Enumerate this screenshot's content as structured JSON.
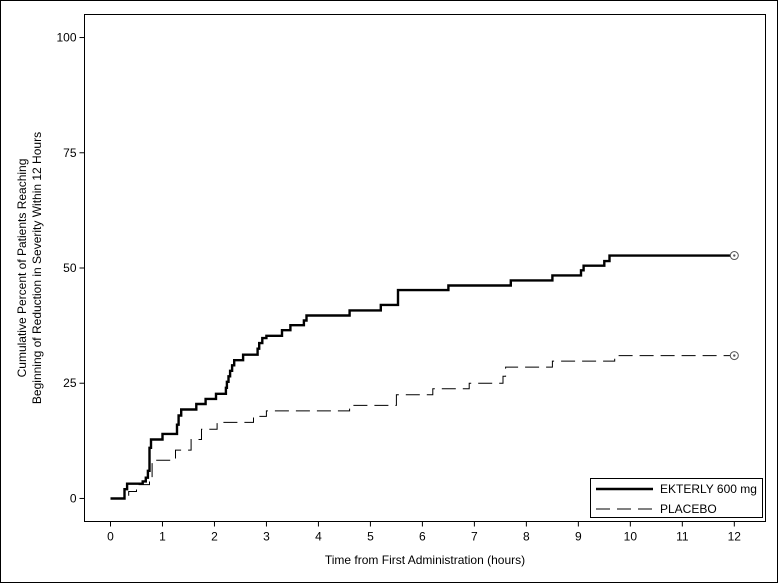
{
  "chart_data": {
    "type": "line",
    "title": "",
    "xlabel": "Time from First Administration (hours)",
    "ylabel_lines": [
      "Cumulative Percent of Patients Reaching",
      "Beginning of Reduction in Severity Within 12 Hours"
    ],
    "xlim": [
      -0.5,
      12.6
    ],
    "ylim": [
      -5,
      105
    ],
    "x_ticks": [
      0,
      1,
      2,
      3,
      4,
      5,
      6,
      7,
      8,
      9,
      10,
      11,
      12
    ],
    "y_ticks": [
      0,
      25,
      50,
      75,
      100
    ],
    "grid": false,
    "legend_position": "bottom-right",
    "censor_marker": "circle",
    "series": [
      {
        "name": "EKTERLY 600 mg",
        "style": "solid-thick",
        "color": "#000000",
        "points": [
          [
            0.0,
            0.0
          ],
          [
            0.27,
            2.0
          ],
          [
            0.32,
            3.2
          ],
          [
            0.62,
            3.7
          ],
          [
            0.68,
            4.5
          ],
          [
            0.72,
            6.0
          ],
          [
            0.75,
            11.0
          ],
          [
            0.78,
            12.8
          ],
          [
            1.0,
            14.0
          ],
          [
            1.28,
            16.0
          ],
          [
            1.31,
            18.0
          ],
          [
            1.36,
            19.3
          ],
          [
            1.65,
            20.5
          ],
          [
            1.83,
            21.6
          ],
          [
            2.03,
            22.7
          ],
          [
            2.22,
            24.0
          ],
          [
            2.24,
            25.3
          ],
          [
            2.27,
            26.5
          ],
          [
            2.3,
            27.7
          ],
          [
            2.34,
            28.9
          ],
          [
            2.38,
            30.0
          ],
          [
            2.55,
            31.2
          ],
          [
            2.83,
            32.5
          ],
          [
            2.86,
            33.7
          ],
          [
            2.92,
            34.8
          ],
          [
            3.0,
            35.3
          ],
          [
            3.3,
            36.5
          ],
          [
            3.46,
            37.6
          ],
          [
            3.72,
            38.6
          ],
          [
            3.77,
            39.7
          ],
          [
            4.6,
            40.8
          ],
          [
            5.2,
            42.0
          ],
          [
            5.53,
            45.2
          ],
          [
            6.5,
            46.2
          ],
          [
            7.7,
            47.3
          ],
          [
            8.5,
            48.4
          ],
          [
            9.05,
            49.5
          ],
          [
            9.1,
            50.5
          ],
          [
            9.5,
            51.5
          ],
          [
            9.6,
            52.7
          ],
          [
            12.0,
            52.7
          ]
        ],
        "censored": [
          [
            12.0,
            52.7
          ]
        ]
      },
      {
        "name": "PLACEBO",
        "style": "dashed",
        "color": "#000000",
        "points": [
          [
            0.0,
            0.0
          ],
          [
            0.35,
            1.5
          ],
          [
            0.5,
            3.0
          ],
          [
            0.75,
            4.5
          ],
          [
            0.8,
            8.3
          ],
          [
            1.25,
            10.5
          ],
          [
            1.55,
            12.8
          ],
          [
            1.75,
            15.0
          ],
          [
            2.05,
            16.5
          ],
          [
            2.75,
            17.8
          ],
          [
            3.0,
            19.0
          ],
          [
            4.6,
            20.2
          ],
          [
            5.5,
            22.5
          ],
          [
            6.2,
            23.8
          ],
          [
            6.9,
            25.0
          ],
          [
            7.55,
            26.5
          ],
          [
            7.6,
            28.5
          ],
          [
            8.5,
            29.8
          ],
          [
            9.7,
            31.0
          ],
          [
            12.0,
            31.0
          ]
        ],
        "censored": [
          [
            12.0,
            31.0
          ]
        ]
      }
    ]
  }
}
